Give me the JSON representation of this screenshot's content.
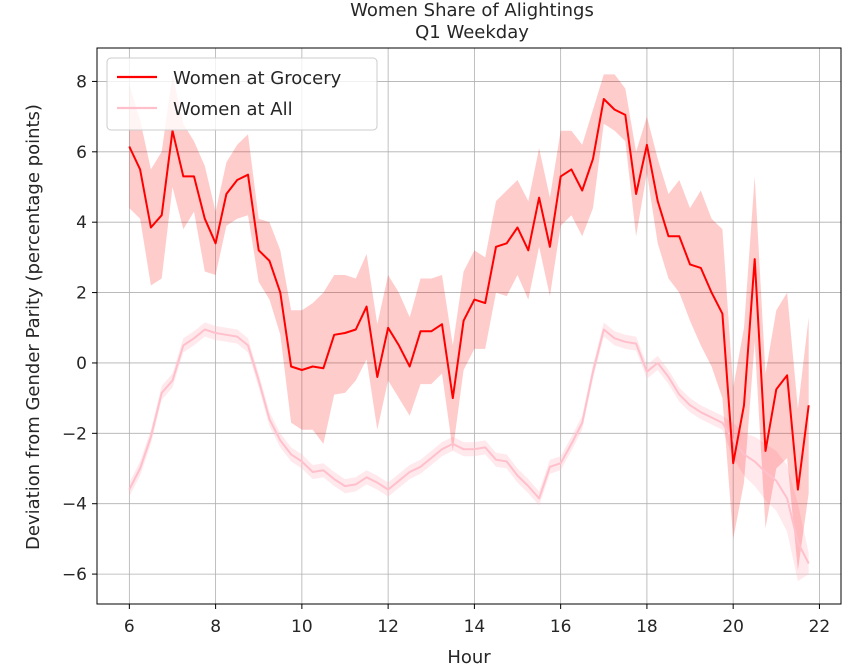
{
  "chart_data": {
    "type": "line",
    "title": "Women Share of Alightings",
    "subtitle": "Q1 Weekday",
    "xlabel": "Hour",
    "ylabel": "Deviation from Gender Parity (percentage points)",
    "xlim": [
      5.25,
      22.5
    ],
    "ylim": [
      -6.85,
      8.95
    ],
    "xticks": [
      6,
      8,
      10,
      12,
      14,
      16,
      18,
      20,
      22
    ],
    "yticks": [
      -6,
      -4,
      -2,
      0,
      2,
      4,
      6,
      8
    ],
    "grid": true,
    "legend_position": "top-left",
    "x": [
      6,
      6.25,
      6.5,
      6.75,
      7,
      7.25,
      7.5,
      7.75,
      8,
      8.25,
      8.5,
      8.75,
      9,
      9.25,
      9.5,
      9.75,
      10,
      10.25,
      10.5,
      10.75,
      11,
      11.25,
      11.5,
      11.75,
      12,
      12.25,
      12.5,
      12.75,
      13,
      13.25,
      13.5,
      13.75,
      14,
      14.25,
      14.5,
      14.75,
      15,
      15.25,
      15.5,
      15.75,
      16,
      16.25,
      16.5,
      16.75,
      17,
      17.25,
      17.5,
      17.75,
      18,
      18.25,
      18.5,
      18.75,
      19,
      19.25,
      19.5,
      19.75,
      20,
      20.25,
      20.5,
      20.75,
      21,
      21.25,
      21.5,
      21.75
    ],
    "series": [
      {
        "name": "Women at Grocery",
        "color": "#ff0000",
        "band_color": "#ff0000",
        "band_opacity": 0.2,
        "line_opacity": 1,
        "values": [
          6.15,
          5.5,
          3.85,
          4.2,
          6.6,
          5.3,
          5.3,
          4.1,
          3.4,
          4.8,
          5.2,
          5.35,
          3.2,
          2.9,
          2.0,
          -0.1,
          -0.2,
          -0.1,
          -0.15,
          0.8,
          0.85,
          0.95,
          1.6,
          -0.4,
          1.0,
          0.5,
          -0.1,
          0.9,
          0.9,
          1.1,
          -1.0,
          1.2,
          1.8,
          1.7,
          3.3,
          3.4,
          3.85,
          3.2,
          4.7,
          3.3,
          5.3,
          5.5,
          4.9,
          5.8,
          7.5,
          7.2,
          7.05,
          4.8,
          6.2,
          4.6,
          3.6,
          3.6,
          2.8,
          2.7,
          2.0,
          1.4,
          -2.85,
          -1.2,
          2.95,
          -2.5,
          -0.75,
          -0.35,
          -3.6,
          -1.2
        ],
        "lower": [
          4.4,
          4.1,
          2.2,
          2.4,
          5.0,
          3.8,
          4.3,
          2.6,
          2.5,
          3.9,
          4.1,
          4.2,
          2.3,
          1.8,
          0.8,
          -1.7,
          -1.9,
          -1.9,
          -2.3,
          -0.9,
          -0.85,
          -0.5,
          0.1,
          -1.9,
          -0.5,
          -1.0,
          -1.5,
          -0.6,
          -0.6,
          -0.3,
          -2.5,
          -0.2,
          0.4,
          0.4,
          2.0,
          1.9,
          2.5,
          1.8,
          3.3,
          1.9,
          3.9,
          4.2,
          3.6,
          4.4,
          6.8,
          6.6,
          6.3,
          3.6,
          5.4,
          3.4,
          2.4,
          2.0,
          1.2,
          0.5,
          -0.1,
          -1.0,
          -5.0,
          -3.4,
          0.6,
          -4.7,
          -3.0,
          -2.7,
          -5.9,
          -3.7
        ],
        "upper": [
          7.9,
          6.9,
          5.5,
          6.0,
          8.2,
          6.8,
          6.3,
          5.6,
          4.3,
          5.7,
          6.2,
          6.5,
          4.1,
          4.0,
          3.2,
          1.5,
          1.5,
          1.7,
          2.0,
          2.5,
          2.5,
          2.4,
          3.1,
          1.1,
          2.5,
          2.0,
          1.3,
          2.4,
          2.4,
          2.5,
          0.5,
          2.6,
          3.2,
          3.0,
          4.6,
          4.9,
          5.2,
          4.6,
          6.1,
          4.7,
          6.6,
          6.6,
          6.2,
          7.2,
          8.2,
          8.2,
          7.8,
          6.0,
          7.0,
          5.8,
          4.8,
          5.2,
          4.4,
          4.9,
          4.1,
          3.8,
          -0.7,
          1.0,
          5.3,
          -0.3,
          1.5,
          2.0,
          -1.3,
          1.3
        ]
      },
      {
        "name": "Women at All",
        "color": "#ffc0cb",
        "band_color": "#ffc0cb",
        "band_opacity": 0.35,
        "line_opacity": 1,
        "values": [
          -3.6,
          -3.0,
          -2.1,
          -0.85,
          -0.5,
          0.5,
          0.7,
          0.95,
          0.85,
          0.8,
          0.75,
          0.5,
          -0.5,
          -1.6,
          -2.2,
          -2.6,
          -2.8,
          -3.1,
          -3.05,
          -3.3,
          -3.5,
          -3.45,
          -3.25,
          -3.4,
          -3.6,
          -3.35,
          -3.1,
          -2.95,
          -2.7,
          -2.45,
          -2.3,
          -2.45,
          -2.45,
          -2.4,
          -2.75,
          -2.8,
          -3.2,
          -3.5,
          -3.85,
          -2.95,
          -2.85,
          -2.3,
          -1.7,
          -0.25,
          0.95,
          0.7,
          0.6,
          0.55,
          -0.25,
          0.0,
          -0.4,
          -0.9,
          -1.2,
          -1.4,
          -1.55,
          -1.7,
          -2.2,
          -2.6,
          -2.8,
          -3.1,
          -3.35,
          -3.85,
          -5.1,
          -5.7
        ],
        "lower": [
          -3.8,
          -3.2,
          -2.3,
          -1.05,
          -0.7,
          0.3,
          0.5,
          0.75,
          0.65,
          0.6,
          0.55,
          0.3,
          -0.7,
          -1.8,
          -2.4,
          -2.8,
          -3.0,
          -3.3,
          -3.25,
          -3.5,
          -3.7,
          -3.65,
          -3.45,
          -3.6,
          -3.8,
          -3.55,
          -3.3,
          -3.15,
          -2.9,
          -2.65,
          -2.5,
          -2.65,
          -2.65,
          -2.6,
          -2.95,
          -3.0,
          -3.4,
          -3.7,
          -4.05,
          -3.15,
          -3.05,
          -2.5,
          -1.9,
          -0.45,
          0.75,
          0.5,
          0.4,
          0.35,
          -0.45,
          -0.2,
          -0.6,
          -1.1,
          -1.4,
          -1.6,
          -1.75,
          -1.9,
          -2.7,
          -3.2,
          -3.5,
          -3.9,
          -4.2,
          -4.8,
          -6.2,
          -6.0
        ],
        "upper": [
          -3.4,
          -2.8,
          -1.9,
          -0.65,
          -0.3,
          0.7,
          0.9,
          1.15,
          1.05,
          1.0,
          0.95,
          0.7,
          -0.3,
          -1.4,
          -2.0,
          -2.4,
          -2.6,
          -2.9,
          -2.85,
          -3.1,
          -3.3,
          -3.25,
          -3.05,
          -3.2,
          -3.4,
          -3.15,
          -2.9,
          -2.75,
          -2.5,
          -2.25,
          -2.1,
          -2.25,
          -2.25,
          -2.2,
          -2.55,
          -2.6,
          -3.0,
          -3.3,
          -3.65,
          -2.75,
          -2.65,
          -2.1,
          -1.5,
          -0.05,
          1.15,
          0.9,
          0.8,
          0.75,
          -0.05,
          0.2,
          -0.2,
          -0.7,
          -1.0,
          -1.2,
          -1.35,
          -1.5,
          -1.7,
          -2.0,
          -2.1,
          -2.3,
          -2.5,
          -2.9,
          -4.0,
          -5.4
        ]
      }
    ]
  }
}
